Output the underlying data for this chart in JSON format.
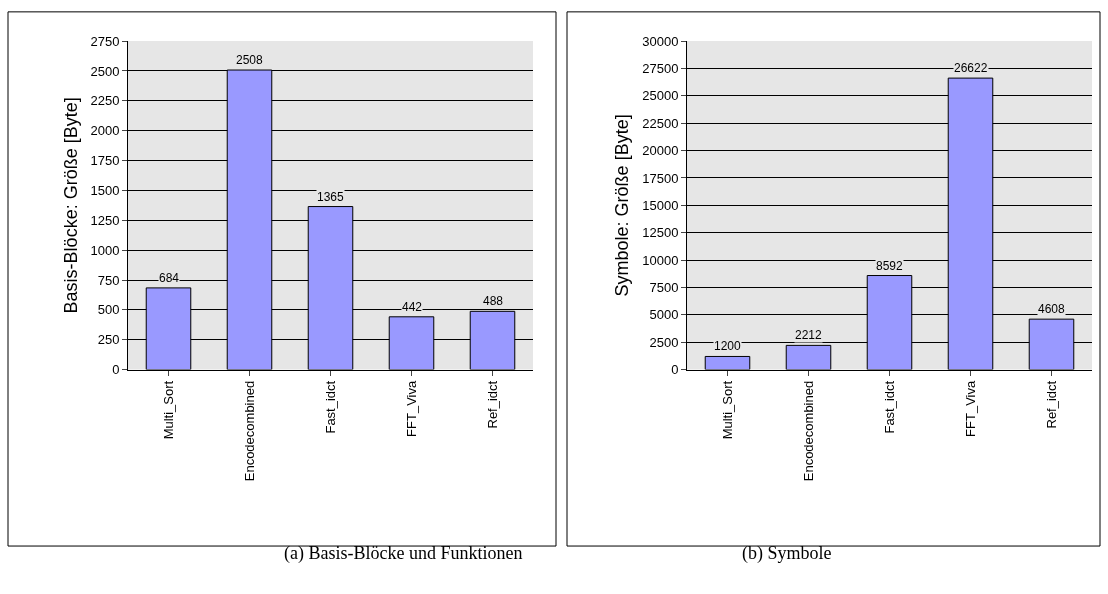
{
  "chart_data": [
    {
      "type": "bar",
      "ylabel": "Basis-Blöcke: Größe [Byte]",
      "categories": [
        "Multi_Sort",
        "Encodecombined",
        "Fast_idct",
        "FFT_Viva",
        "Ref_idct"
      ],
      "values": [
        684,
        2508,
        1365,
        442,
        488
      ],
      "color": "#9999ff",
      "ylim": [
        0,
        2750
      ],
      "yticks": [
        0,
        250,
        500,
        750,
        1000,
        1250,
        1500,
        1750,
        2000,
        2250,
        2500,
        2750
      ],
      "grid": "y",
      "data_labels": true,
      "annotations": [
        "(a) Basis-Blöcke und Funktionen"
      ]
    },
    {
      "type": "bar",
      "ylabel": "Symbole: Größe [Byte]",
      "categories": [
        "Multi_Sort",
        "Encodecombined",
        "Fast_idct",
        "FFT_Viva",
        "Ref_idct"
      ],
      "values": [
        1200,
        2212,
        8592,
        26622,
        4608
      ],
      "color": "#9999ff",
      "ylim": [
        0,
        30000
      ],
      "yticks": [
        0,
        2500,
        5000,
        7500,
        10000,
        12500,
        15000,
        17500,
        20000,
        22500,
        25000,
        27500,
        30000
      ],
      "grid": "y",
      "data_labels": true,
      "annotations": [
        "(b) Symbole"
      ]
    }
  ]
}
